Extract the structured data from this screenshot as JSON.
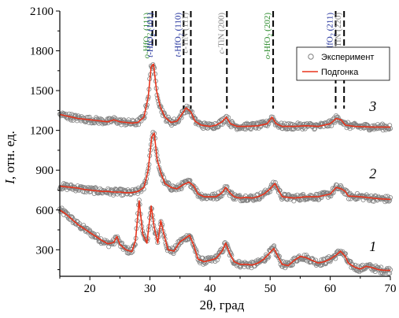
{
  "chart_data": {
    "type": "scatter",
    "title": "",
    "xlabel": "2θ, град",
    "ylabel_italic": "I",
    "ylabel_rest": ", отн. ед.",
    "xlim": [
      15,
      70
    ],
    "ylim": [
      100,
      2100
    ],
    "xticks": [
      20,
      30,
      40,
      50,
      60,
      70
    ],
    "yticks": [
      300,
      600,
      900,
      1200,
      1500,
      1800,
      2100
    ],
    "grid": false,
    "legend_position": "top-right",
    "legend": [
      {
        "label": "Эксперимент",
        "marker": "open-circle",
        "color": "#808080"
      },
      {
        "label": "Подгонка",
        "marker": "line",
        "color": "#e8341c"
      }
    ],
    "colors": {
      "fit": "#e8341c",
      "experiment": "#808080",
      "o_phase": "#2a8a2a",
      "t_phase": "#1c2c9a",
      "c_phase": "#808080"
    },
    "series": [
      {
        "name": "1",
        "fit": [
          [
            15,
            600
          ],
          [
            16,
            570
          ],
          [
            17,
            530
          ],
          [
            18,
            490
          ],
          [
            19,
            460
          ],
          [
            20,
            430
          ],
          [
            21,
            400
          ],
          [
            22,
            370
          ],
          [
            23,
            345
          ],
          [
            24,
            355
          ],
          [
            24.5,
            400
          ],
          [
            25,
            340
          ],
          [
            26,
            300
          ],
          [
            27,
            285
          ],
          [
            27.6,
            370
          ],
          [
            28.2,
            670
          ],
          [
            28.8,
            420
          ],
          [
            29.5,
            350
          ],
          [
            30.2,
            630
          ],
          [
            30.7,
            470
          ],
          [
            31.3,
            350
          ],
          [
            31.8,
            520
          ],
          [
            32.3,
            420
          ],
          [
            33,
            300
          ],
          [
            34,
            290
          ],
          [
            35,
            360
          ],
          [
            36,
            390
          ],
          [
            36.6,
            410
          ],
          [
            37.3,
            330
          ],
          [
            38,
            230
          ],
          [
            39,
            210
          ],
          [
            40,
            220
          ],
          [
            41,
            235
          ],
          [
            42,
            290
          ],
          [
            42.6,
            350
          ],
          [
            43.3,
            270
          ],
          [
            44,
            210
          ],
          [
            45,
            190
          ],
          [
            46,
            190
          ],
          [
            47,
            185
          ],
          [
            48,
            200
          ],
          [
            49,
            230
          ],
          [
            50,
            280
          ],
          [
            50.6,
            310
          ],
          [
            51.3,
            250
          ],
          [
            52,
            190
          ],
          [
            53,
            180
          ],
          [
            54,
            220
          ],
          [
            55,
            250
          ],
          [
            56,
            240
          ],
          [
            57,
            220
          ],
          [
            58,
            200
          ],
          [
            59,
            210
          ],
          [
            60,
            230
          ],
          [
            61,
            260
          ],
          [
            61.7,
            290
          ],
          [
            62.5,
            250
          ],
          [
            63,
            200
          ],
          [
            64,
            170
          ],
          [
            65,
            155
          ],
          [
            66,
            175
          ],
          [
            67,
            165
          ],
          [
            68,
            150
          ],
          [
            69,
            145
          ],
          [
            70,
            145
          ]
        ],
        "label_x": 66.5,
        "label_y": 290
      },
      {
        "name": "2",
        "fit": [
          [
            15,
            780
          ],
          [
            16,
            775
          ],
          [
            17,
            770
          ],
          [
            18,
            765
          ],
          [
            19,
            755
          ],
          [
            20,
            750
          ],
          [
            21,
            745
          ],
          [
            22,
            740
          ],
          [
            23,
            740
          ],
          [
            24,
            735
          ],
          [
            25,
            735
          ],
          [
            26,
            730
          ],
          [
            27,
            730
          ],
          [
            28,
            740
          ],
          [
            29,
            770
          ],
          [
            29.7,
            900
          ],
          [
            30.3,
            1150
          ],
          [
            30.7,
            1180
          ],
          [
            31.2,
            980
          ],
          [
            31.8,
            880
          ],
          [
            32.5,
            800
          ],
          [
            33.5,
            770
          ],
          [
            34.5,
            760
          ],
          [
            35.5,
            790
          ],
          [
            36.5,
            810
          ],
          [
            37.3,
            780
          ],
          [
            38,
            720
          ],
          [
            39,
            700
          ],
          [
            40,
            700
          ],
          [
            41,
            700
          ],
          [
            42,
            730
          ],
          [
            42.6,
            770
          ],
          [
            43.3,
            730
          ],
          [
            44,
            700
          ],
          [
            45,
            690
          ],
          [
            46,
            695
          ],
          [
            47,
            690
          ],
          [
            48,
            700
          ],
          [
            49,
            720
          ],
          [
            50,
            760
          ],
          [
            50.8,
            800
          ],
          [
            51.5,
            740
          ],
          [
            52,
            700
          ],
          [
            54,
            690
          ],
          [
            56,
            700
          ],
          [
            58,
            700
          ],
          [
            60,
            720
          ],
          [
            61,
            770
          ],
          [
            61.8,
            760
          ],
          [
            62.5,
            740
          ],
          [
            63,
            705
          ],
          [
            65,
            700
          ],
          [
            68,
            685
          ],
          [
            70,
            680
          ]
        ],
        "label_x": 66.5,
        "label_y": 840
      },
      {
        "name": "3",
        "fit": [
          [
            15,
            1320
          ],
          [
            16,
            1310
          ],
          [
            17,
            1300
          ],
          [
            18,
            1290
          ],
          [
            19,
            1285
          ],
          [
            20,
            1280
          ],
          [
            21,
            1275
          ],
          [
            22,
            1270
          ],
          [
            23,
            1265
          ],
          [
            24,
            1280
          ],
          [
            25,
            1265
          ],
          [
            26,
            1260
          ],
          [
            27,
            1255
          ],
          [
            28,
            1260
          ],
          [
            29,
            1300
          ],
          [
            29.7,
            1450
          ],
          [
            30.2,
            1680
          ],
          [
            30.6,
            1700
          ],
          [
            31.1,
            1500
          ],
          [
            31.7,
            1380
          ],
          [
            32.5,
            1300
          ],
          [
            33.5,
            1260
          ],
          [
            34.5,
            1270
          ],
          [
            35.3,
            1320
          ],
          [
            36,
            1370
          ],
          [
            36.8,
            1340
          ],
          [
            37.5,
            1270
          ],
          [
            38.5,
            1240
          ],
          [
            40,
            1230
          ],
          [
            41,
            1240
          ],
          [
            42,
            1265
          ],
          [
            42.7,
            1300
          ],
          [
            43.4,
            1250
          ],
          [
            44.5,
            1230
          ],
          [
            46,
            1230
          ],
          [
            48,
            1235
          ],
          [
            49.5,
            1250
          ],
          [
            50.3,
            1300
          ],
          [
            51,
            1250
          ],
          [
            52,
            1230
          ],
          [
            54,
            1230
          ],
          [
            56,
            1235
          ],
          [
            58,
            1230
          ],
          [
            60,
            1250
          ],
          [
            61,
            1290
          ],
          [
            61.8,
            1280
          ],
          [
            62.5,
            1240
          ],
          [
            64,
            1230
          ],
          [
            67,
            1225
          ],
          [
            70,
            1225
          ]
        ],
        "label_x": 66.5,
        "label_y": 1345
      }
    ],
    "annotations": [
      {
        "x": 30.4,
        "tall": true,
        "color": "#2a8a2a",
        "main": "o-HfO",
        "sub": "2",
        "rest": " (111)"
      },
      {
        "x": 31.0,
        "tall": true,
        "color": "#1c2c9a",
        "main": "t-HfO",
        "sub": "2",
        "rest": " (101)"
      },
      {
        "x": 35.6,
        "tall": false,
        "color": "#1c2c9a",
        "main": "t-HfO",
        "sub": "2",
        "rest": " (110)"
      },
      {
        "x": 36.8,
        "tall": false,
        "color": "#808080",
        "main": "c-TiN",
        "sub": "",
        "rest": " (111)"
      },
      {
        "x": 42.8,
        "tall": false,
        "color": "#808080",
        "main": "c-TiN",
        "sub": "",
        "rest": " (200)"
      },
      {
        "x": 50.5,
        "tall": false,
        "color": "#2a8a2a",
        "main": "o-HfO",
        "sub": "2",
        "rest": " (202)"
      },
      {
        "x": 60.9,
        "tall": false,
        "color": "#1c2c9a",
        "main": "t-HfO",
        "sub": "2",
        "rest": " (211)"
      },
      {
        "x": 62.3,
        "tall": false,
        "color": "#808080",
        "main": "c-TiN",
        "sub": "",
        "rest": " (220)"
      }
    ]
  }
}
